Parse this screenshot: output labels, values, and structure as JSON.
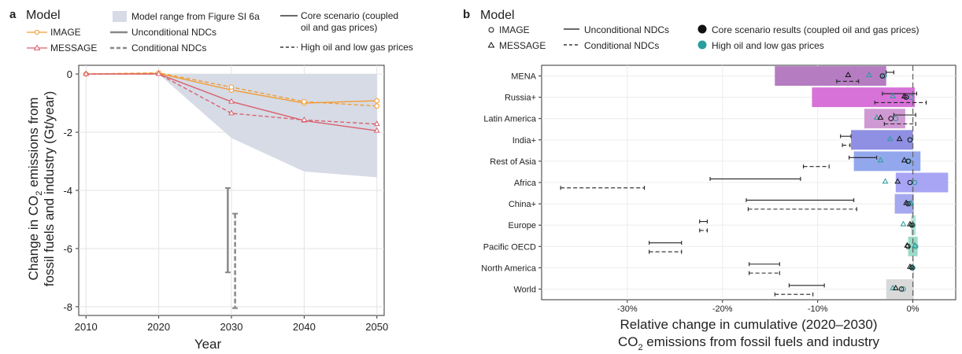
{
  "chart_data": [
    {
      "panel_label": "a",
      "type": "line",
      "legend": {
        "title": "Model",
        "entries": {
          "image": "IMAGE",
          "message": "MESSAGE",
          "range": "Model range from Figure SI 6a",
          "unconditional": "Unconditional NDCs",
          "conditional": "Conditional NDCs",
          "core_l1": "Core scenario (coupled",
          "core_l2": "oil and gas prices)",
          "high": "High oil and low gas prices"
        }
      },
      "xlabel": "Year",
      "ylabel_l1": "Change in CO",
      "ylabel_sub": "2",
      "ylabel_l1_rest": " emissions from",
      "ylabel_l2": "fossil fuels and industry (Gt/year)",
      "x": [
        2010,
        2020,
        2030,
        2040,
        2050
      ],
      "xticks": [
        "2010",
        "2020",
        "2030",
        "2040",
        "2050"
      ],
      "yticks": [
        "0",
        "-2",
        "-4",
        "-6",
        "-8"
      ],
      "ytick_values": [
        0,
        -2,
        -4,
        -6,
        -8
      ],
      "xlim": [
        2009,
        2051
      ],
      "ylim": [
        -8.3,
        0.3
      ],
      "grid": true,
      "colors": {
        "image": "#f39c32",
        "message": "#d9616d",
        "range": "#d6dbe6",
        "ndc": "#888888"
      },
      "range_band": {
        "upper": [
          0,
          0,
          0,
          0,
          0
        ],
        "lower": [
          0,
          0,
          -2.2,
          -3.35,
          -3.55
        ]
      },
      "series": [
        {
          "model": "image",
          "scenario": "core",
          "values": [
            0,
            0.02,
            -0.55,
            -1.0,
            -0.92
          ]
        },
        {
          "model": "image",
          "scenario": "high",
          "values": [
            0,
            0.04,
            -0.45,
            -0.95,
            -1.1
          ]
        },
        {
          "model": "message",
          "scenario": "core",
          "values": [
            0,
            0.0,
            -0.95,
            -1.6,
            -1.95
          ]
        },
        {
          "model": "message",
          "scenario": "high",
          "values": [
            0,
            0.0,
            -1.35,
            -1.58,
            -1.72
          ]
        }
      ],
      "ndc_bars": [
        {
          "type": "unconditional",
          "x": 2029.5,
          "low": -6.82,
          "high": -3.92
        },
        {
          "type": "conditional",
          "x": 2030.5,
          "low": -8.05,
          "high": -4.8
        }
      ]
    },
    {
      "panel_label": "b",
      "type": "bar",
      "orientation": "horizontal",
      "legend": {
        "title": "Model",
        "entries": {
          "image": "IMAGE",
          "message": "MESSAGE",
          "unconditional": "Unconditional NDCs",
          "conditional": "Conditional NDCs",
          "core": "Core scenario results (coupled oil and gas prices)",
          "high": "High oil and low gas prices"
        }
      },
      "xlabel_l1": "Relative change in cumulative (2020–2030)",
      "xlabel_l2_pre": "CO",
      "xlabel_l2_sub": "2",
      "xlabel_l2_post": " emissions from fossil fuels and industry",
      "xticks": [
        "-30%",
        "-20%",
        "-10%",
        "0%"
      ],
      "xtick_values": [
        -30,
        -20,
        -10,
        0
      ],
      "xlim": [
        -39,
        4.5
      ],
      "colors": {
        "high_marker": "#2a9d9c",
        "core_marker": "#111111"
      },
      "categories": [
        "MENA",
        "Russia+",
        "Latin America",
        "India+",
        "Rest of Asia",
        "Africa",
        "China+",
        "Europe",
        "Pacific OECD",
        "North America",
        "World"
      ],
      "bars": [
        {
          "from": -14.5,
          "to": -2.8,
          "color": "#b57cc2"
        },
        {
          "from": -10.6,
          "to": 0.2,
          "color": "#d772d8"
        },
        {
          "from": -5.1,
          "to": -0.8,
          "color": "#cf9ad3"
        },
        {
          "from": -6.5,
          "to": 0.0,
          "color": "#8f8fe3"
        },
        {
          "from": -6.2,
          "to": 0.8,
          "color": "#93a8ec"
        },
        {
          "from": -1.8,
          "to": 3.7,
          "color": "#a8a5f4"
        },
        {
          "from": -1.9,
          "to": 0.1,
          "color": "#a4a8ee"
        },
        {
          "from": -0.2,
          "to": 0.3,
          "color": "#b4e3d6"
        },
        {
          "from": -0.5,
          "to": 0.5,
          "color": "#9bdcc8"
        },
        {
          "from": 0.0,
          "to": 0.1,
          "color": "#d0d0d0"
        },
        {
          "from": -2.8,
          "to": 0.1,
          "color": "#d9d9d9"
        }
      ],
      "unconditional": [
        [
          -2.8,
          -2.0
        ],
        [
          -3.2,
          0.4
        ],
        [
          -2.0,
          0.3
        ],
        [
          -7.6,
          -6.5
        ],
        [
          -6.7,
          -3.8
        ],
        [
          -21.3,
          -11.8
        ],
        [
          -17.5,
          -6.2
        ],
        [
          -22.4,
          -21.6
        ],
        [
          -27.7,
          -24.3
        ],
        [
          -17.2,
          -14.0
        ],
        [
          -13.0,
          -9.3
        ]
      ],
      "conditional": [
        [
          -8.0,
          -5.7
        ],
        [
          -4.0,
          1.4
        ],
        [
          -3.0,
          0.3
        ],
        [
          -7.4,
          -6.6
        ],
        [
          -11.5,
          -8.8
        ],
        [
          -37.0,
          -28.2
        ],
        [
          -17.3,
          -5.9
        ],
        [
          -22.4,
          -21.6
        ],
        [
          -27.7,
          -24.3
        ],
        [
          -17.2,
          -14.0
        ],
        [
          -14.5,
          -10.5
        ]
      ],
      "image_core": [
        -3.2,
        -0.7,
        -2.3,
        -0.3,
        -0.5,
        -0.3,
        -0.5,
        -0.1,
        -0.5,
        -0.1,
        -1.2
      ],
      "image_high": [
        -3.0,
        -0.2,
        -1.8,
        -0.3,
        -0.4,
        0.2,
        -0.3,
        0.0,
        0.3,
        0.0,
        -1.0
      ],
      "message_core": [
        -6.8,
        -0.9,
        -3.4,
        -1.4,
        -0.9,
        -1.6,
        -0.7,
        -0.3,
        -0.6,
        -0.3,
        -1.8
      ],
      "message_high": [
        -4.6,
        -2.1,
        -3.8,
        -2.4,
        -3.4,
        -2.9,
        -0.2,
        -1.0,
        0.2,
        -0.1,
        -2.1
      ]
    }
  ]
}
